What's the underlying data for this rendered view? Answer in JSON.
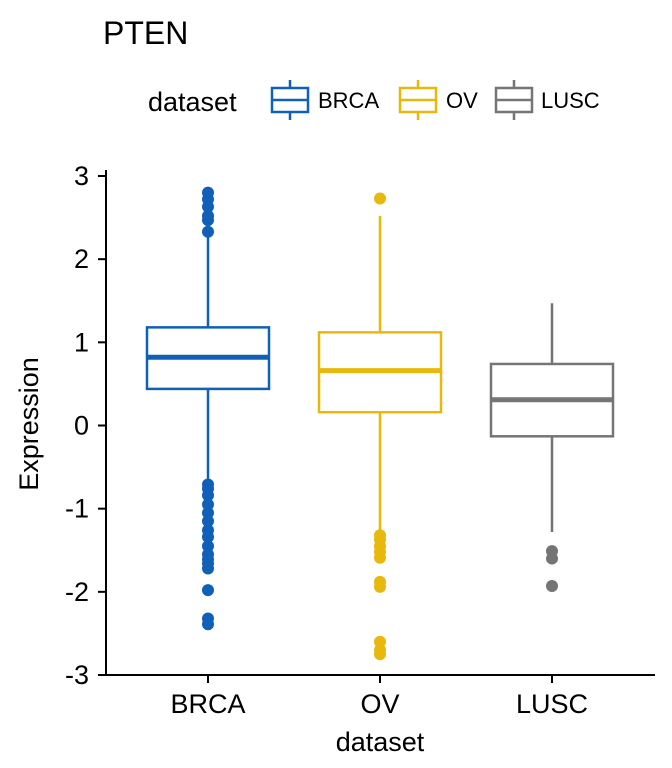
{
  "chart_data": {
    "type": "box",
    "title": "PTEN",
    "xlabel": "dataset",
    "ylabel": "Expression",
    "legend": {
      "title": "dataset",
      "placement": "top"
    },
    "ylim": [
      -3,
      3
    ],
    "yticks": [
      3,
      2,
      1,
      0,
      -1,
      -2,
      -3
    ],
    "ytick_labels": [
      "3",
      "2",
      "1",
      "0",
      "-1",
      "-2",
      "-3"
    ],
    "grid": false,
    "categories": [
      "BRCA",
      "OV",
      "LUSC"
    ],
    "series": [
      {
        "name": "BRCA",
        "color": "#1060b8",
        "whisker_low": -0.68,
        "q1": 0.44,
        "median": 0.82,
        "q3": 1.18,
        "whisker_high": 2.28,
        "outliers": [
          2.8,
          2.72,
          2.63,
          2.52,
          2.47,
          2.33,
          -0.71,
          -0.76,
          -0.84,
          -0.95,
          -1.05,
          -1.15,
          -1.26,
          -1.34,
          -1.45,
          -1.55,
          -1.61,
          -1.66,
          -1.72,
          -1.98,
          -2.32,
          -2.39
        ]
      },
      {
        "name": "OV",
        "color": "#e8b80c",
        "whisker_low": -1.27,
        "q1": 0.16,
        "median": 0.66,
        "q3": 1.12,
        "whisker_high": 2.52,
        "outliers": [
          2.73,
          -1.32,
          -1.37,
          -1.45,
          -1.52,
          -1.59,
          -1.88,
          -1.94,
          -2.6,
          -2.7,
          -2.75
        ]
      },
      {
        "name": "LUSC",
        "color": "#757575",
        "whisker_low": -1.28,
        "q1": -0.13,
        "median": 0.31,
        "q3": 0.74,
        "whisker_high": 1.47,
        "outliers": [
          -1.51,
          -1.6,
          -1.93
        ]
      }
    ]
  }
}
